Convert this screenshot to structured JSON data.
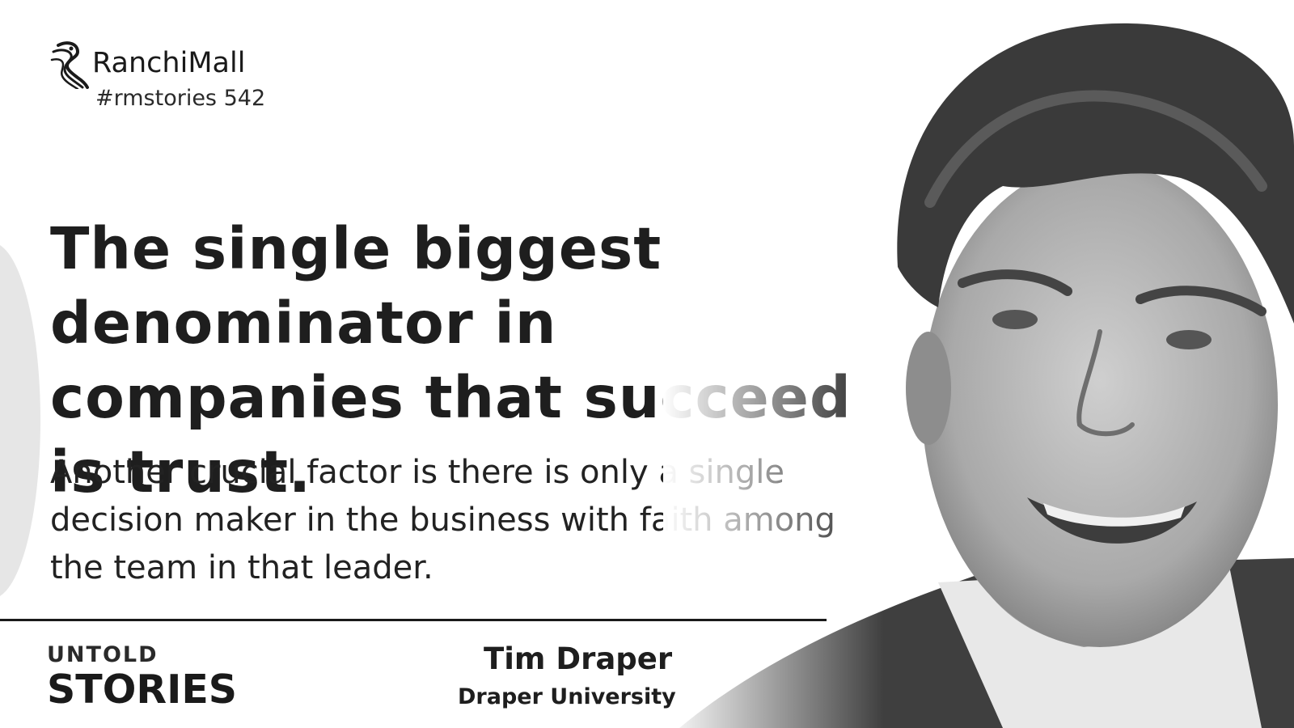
{
  "branding": {
    "name": "RanchiMall",
    "hashtag": "#rmstories 542"
  },
  "quote": {
    "headline": "The single biggest denominator in companies that succeed is trust.",
    "body": "Another crucial factor is there is only a single decision maker in the business with faith among the team in that leader."
  },
  "series": {
    "line1": "UNTOLD",
    "line2": "STORIES"
  },
  "attribution": {
    "name": "Tim Draper",
    "organization": "Draper University"
  }
}
